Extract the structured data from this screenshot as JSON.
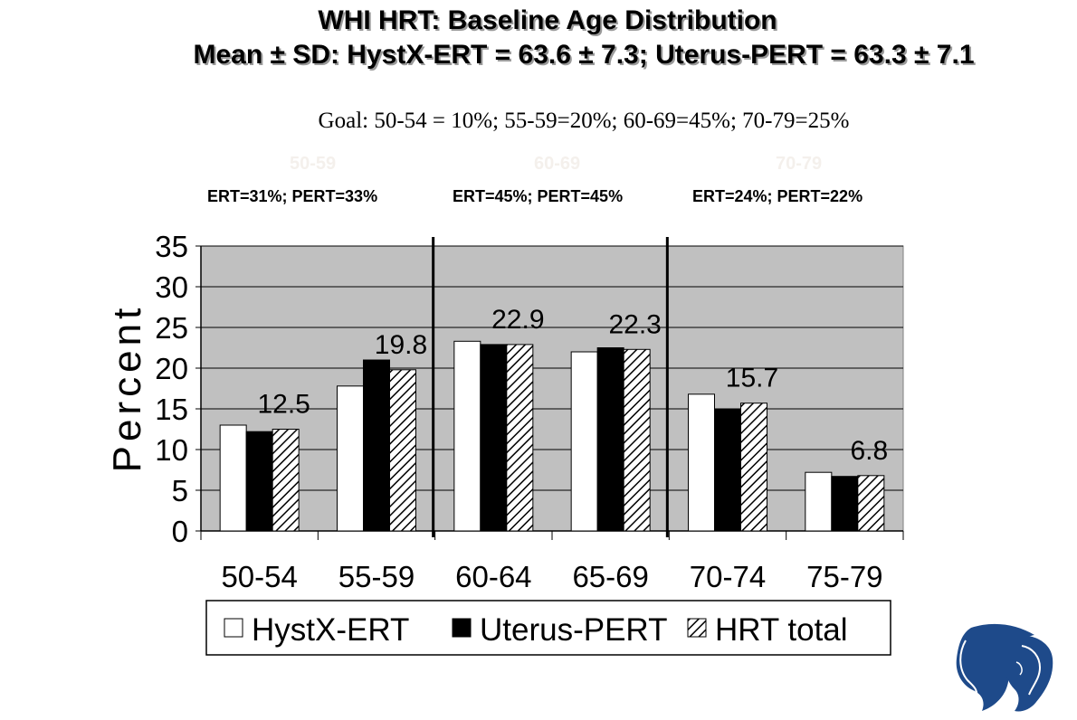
{
  "slide": {
    "title_line1": "WHI HRT:   Baseline Age Distribution",
    "title_line2": "Mean ± SD: HystX-ERT = 63.6 ± 7.3; Uterus-PERT = 63.3 ± 7.1",
    "goal": "Goal:  50-54 = 10%;  55-59=20%;  60-69=45%;  70-79=25%",
    "group_ghost_labels": [
      "50-59",
      "60-69",
      "70-79"
    ],
    "group_summaries": [
      "ERT=31%; PERT=33%",
      "ERT=45%; PERT=45%",
      "ERT=24%; PERT=22%"
    ]
  },
  "chart_data": {
    "type": "bar",
    "categories": [
      "50-54",
      "55-59",
      "60-64",
      "65-69",
      "70-74",
      "75-79"
    ],
    "series": [
      {
        "name": "HystX-ERT",
        "values": [
          13.0,
          17.8,
          23.3,
          22.0,
          16.8,
          7.2
        ],
        "fill": "#ffffff"
      },
      {
        "name": "Uterus-PERT",
        "values": [
          12.2,
          21.0,
          22.9,
          22.5,
          15.0,
          6.7
        ],
        "fill": "#000000"
      },
      {
        "name": "HRT total",
        "values": [
          12.5,
          19.8,
          22.9,
          22.3,
          15.7,
          6.8
        ],
        "fill": "hatch"
      }
    ],
    "data_labels": [
      "12.5",
      "19.8",
      "22.9",
      "22.3",
      "15.7",
      "6.8"
    ],
    "ylabel": "Percent",
    "ylim": [
      0,
      35
    ],
    "yticks": [
      "0",
      "5",
      "10",
      "15",
      "20",
      "25",
      "30",
      "35"
    ],
    "grid": true,
    "plot_background": "#c0c0c0",
    "legend_position": "bottom",
    "group_dividers_after": [
      "55-59",
      "65-69"
    ]
  }
}
